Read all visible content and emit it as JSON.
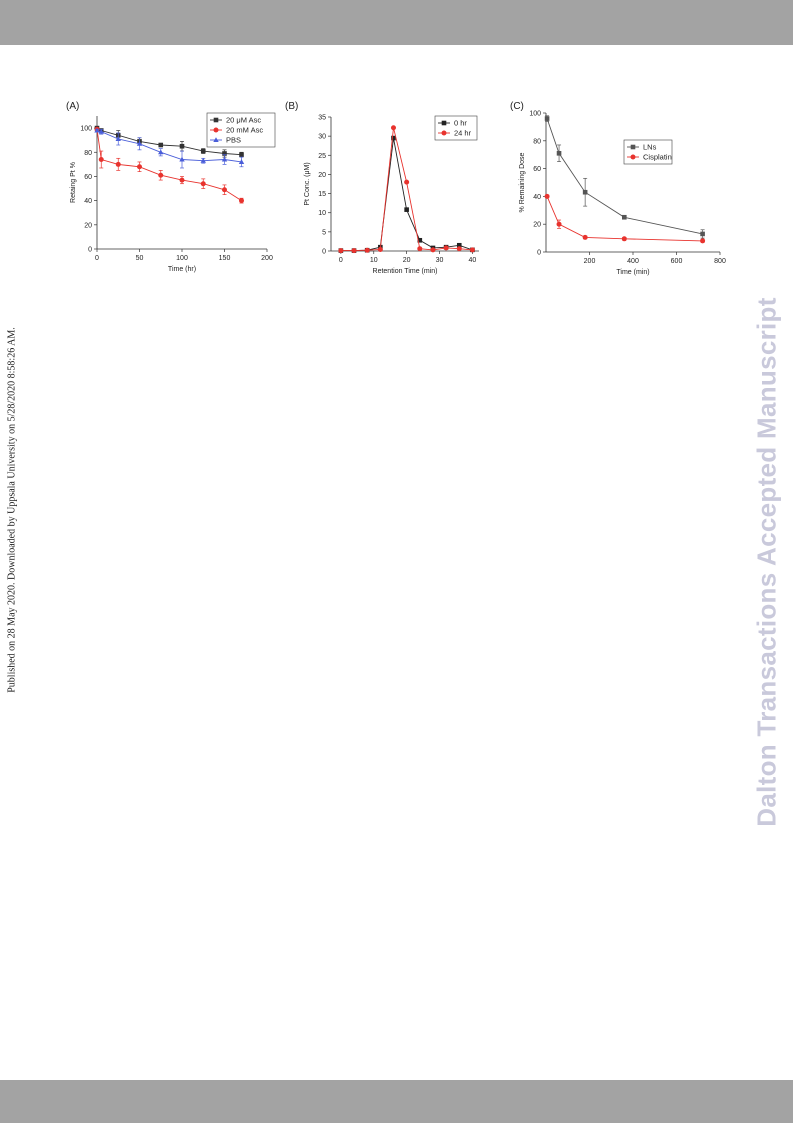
{
  "page": {
    "side_note": "Published on 28 May 2020. Downloaded by Uppsala University on 5/28/2020 8:58:26 AM.",
    "watermark": "Dalton Transactions Accepted Manuscript"
  },
  "chart_data": [
    {
      "panel_label": "(A)",
      "type": "line",
      "xlabel": "Time (hr)",
      "ylabel": "Retaing Pt %",
      "xlim": [
        0,
        200
      ],
      "ylim": [
        0,
        110
      ],
      "xticks": [
        0,
        50,
        100,
        150,
        200
      ],
      "yticks": [
        0,
        20,
        40,
        60,
        80,
        100
      ],
      "legend": "top-right",
      "grid": false,
      "series": [
        {
          "name": "20 μM Asc",
          "color": "#333333",
          "marker": "square",
          "x": [
            0,
            5,
            25,
            50,
            75,
            100,
            125,
            150,
            170
          ],
          "y": [
            100,
            98,
            94,
            89,
            86,
            85,
            81,
            79,
            78
          ],
          "err": [
            1,
            1,
            4,
            3,
            1,
            4,
            2,
            3,
            2
          ]
        },
        {
          "name": "20 mM Asc",
          "color": "#e8332e",
          "marker": "circle",
          "x": [
            0,
            5,
            25,
            50,
            75,
            100,
            125,
            150,
            170
          ],
          "y": [
            99,
            74,
            70,
            68,
            61,
            57,
            54,
            49,
            40
          ],
          "err": [
            1,
            7,
            5,
            4,
            4,
            3,
            4,
            4,
            2
          ]
        },
        {
          "name": "PBS",
          "color": "#4a5ed9",
          "marker": "triangle",
          "x": [
            0,
            5,
            25,
            50,
            75,
            100,
            125,
            150,
            170
          ],
          "y": [
            98,
            97,
            91,
            87,
            80,
            74,
            73,
            74,
            72
          ],
          "err": [
            1,
            2,
            5,
            5,
            3,
            7,
            2,
            4,
            4
          ]
        }
      ]
    },
    {
      "panel_label": "(B)",
      "type": "line",
      "xlabel": "Retention Time (min)",
      "ylabel": "Pt Conc. (μM)",
      "xlim": [
        -3,
        42
      ],
      "ylim": [
        0,
        35
      ],
      "xticks": [
        0,
        10,
        20,
        30,
        40
      ],
      "yticks": [
        0,
        5,
        10,
        15,
        20,
        25,
        30,
        35
      ],
      "legend": "top-right",
      "grid": false,
      "series": [
        {
          "name": "0 hr",
          "color": "#222222",
          "marker": "square",
          "x": [
            0,
            4,
            8,
            12,
            16,
            20,
            24,
            28,
            32,
            36,
            40
          ],
          "y": [
            0.1,
            0.1,
            0.2,
            1.0,
            29.5,
            10.8,
            2.8,
            0.8,
            1.0,
            1.5,
            0.3
          ]
        },
        {
          "name": "24 hr",
          "color": "#e8332e",
          "marker": "circle",
          "x": [
            0,
            4,
            8,
            12,
            16,
            20,
            24,
            28,
            32,
            36,
            40
          ],
          "y": [
            0.1,
            0.1,
            0.2,
            0.4,
            32.2,
            18.0,
            0.6,
            0.3,
            0.8,
            0.6,
            0.3
          ]
        }
      ]
    },
    {
      "panel_label": "(C)",
      "type": "line",
      "xlabel": "Time (min)",
      "ylabel": "% Remaining Dose",
      "xlim": [
        0,
        800
      ],
      "ylim": [
        0,
        100
      ],
      "xticks": [
        200,
        400,
        600,
        800
      ],
      "yticks": [
        0,
        20,
        40,
        60,
        80,
        100
      ],
      "legend": "top-right",
      "grid": false,
      "series": [
        {
          "name": "LNs",
          "color": "#555555",
          "marker": "square",
          "x": [
            5,
            60,
            180,
            360,
            720
          ],
          "y": [
            96,
            71,
            43,
            25,
            13
          ],
          "err": [
            2,
            6,
            10,
            1,
            3
          ]
        },
        {
          "name": "Cisplatin",
          "color": "#e8332e",
          "marker": "circle",
          "x": [
            5,
            60,
            180,
            360,
            720
          ],
          "y": [
            40,
            20,
            10.5,
            9.5,
            8
          ],
          "err": [
            1,
            3,
            1,
            1,
            1
          ]
        }
      ]
    }
  ]
}
